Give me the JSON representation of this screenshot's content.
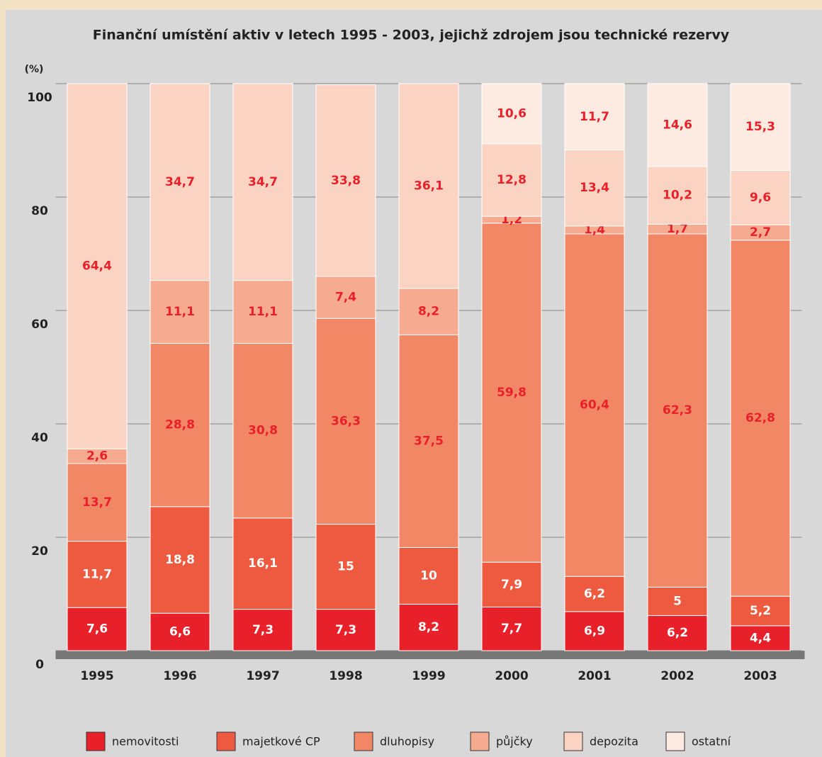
{
  "chart_data": {
    "type": "stacked_bar",
    "title": "Finanční umístění aktiv v letech 1995 - 2003, jejichž zdrojem jsou technické rezervy",
    "y_label": "(%)",
    "categories": [
      "1995",
      "1996",
      "1997",
      "1998",
      "1999",
      "2000",
      "2001",
      "2002",
      "2003"
    ],
    "series": [
      {
        "name": "nemovitosti",
        "color": "#e8202a",
        "values": [
          7.6,
          6.6,
          7.3,
          7.3,
          8.2,
          7.7,
          6.9,
          6.2,
          4.4
        ],
        "value_labels": [
          "7,6",
          "6,6",
          "7,3",
          "7,3",
          "8,2",
          "7,7",
          "6,9",
          "6,2",
          "4,4"
        ]
      },
      {
        "name": "majetkové CP",
        "color": "#ee5a40",
        "values": [
          11.7,
          18.8,
          16.1,
          15,
          10,
          7.9,
          6.2,
          5,
          5.2
        ],
        "value_labels": [
          "11,7",
          "18,8",
          "16,1",
          "15",
          "10",
          "7,9",
          "6,2",
          "5",
          "5,2"
        ]
      },
      {
        "name": "dluhopisy",
        "color": "#f28766",
        "values": [
          13.7,
          28.8,
          30.8,
          36.3,
          37.5,
          59.8,
          60.4,
          62.3,
          62.8
        ],
        "value_labels": [
          "13,7",
          "28,8",
          "30,8",
          "36,3",
          "37,5",
          "59,8",
          "60,4",
          "62,3",
          "62,8"
        ]
      },
      {
        "name": "půjčky",
        "color": "#f6ab90",
        "values": [
          2.6,
          11.1,
          11.1,
          7.4,
          8.2,
          1.2,
          1.4,
          1.7,
          2.7
        ],
        "value_labels": [
          "2,6",
          "11,1",
          "11,1",
          "7,4",
          "8,2",
          "1,2",
          "1,4",
          "1,7",
          "2,7"
        ]
      },
      {
        "name": "depozita",
        "color": "#fbd3c2",
        "values": [
          64.4,
          34.7,
          34.7,
          33.8,
          36.1,
          12.8,
          13.4,
          10.2,
          9.6
        ],
        "value_labels": [
          "64,4",
          "34,7",
          "34,7",
          "33,8",
          "36,1",
          "12,8",
          "13,4",
          "10,2",
          "9,6"
        ]
      },
      {
        "name": "ostatní",
        "color": "#fdeae1",
        "values": [
          null,
          null,
          null,
          null,
          null,
          10.6,
          11.7,
          14.6,
          15.3
        ],
        "value_labels": [
          null,
          null,
          null,
          null,
          null,
          "10,6",
          "11,7",
          "14,6",
          "15,3"
        ]
      }
    ],
    "ylim": [
      0,
      100
    ],
    "yticks": [
      0,
      20,
      40,
      60,
      80,
      100
    ],
    "grid": true
  }
}
